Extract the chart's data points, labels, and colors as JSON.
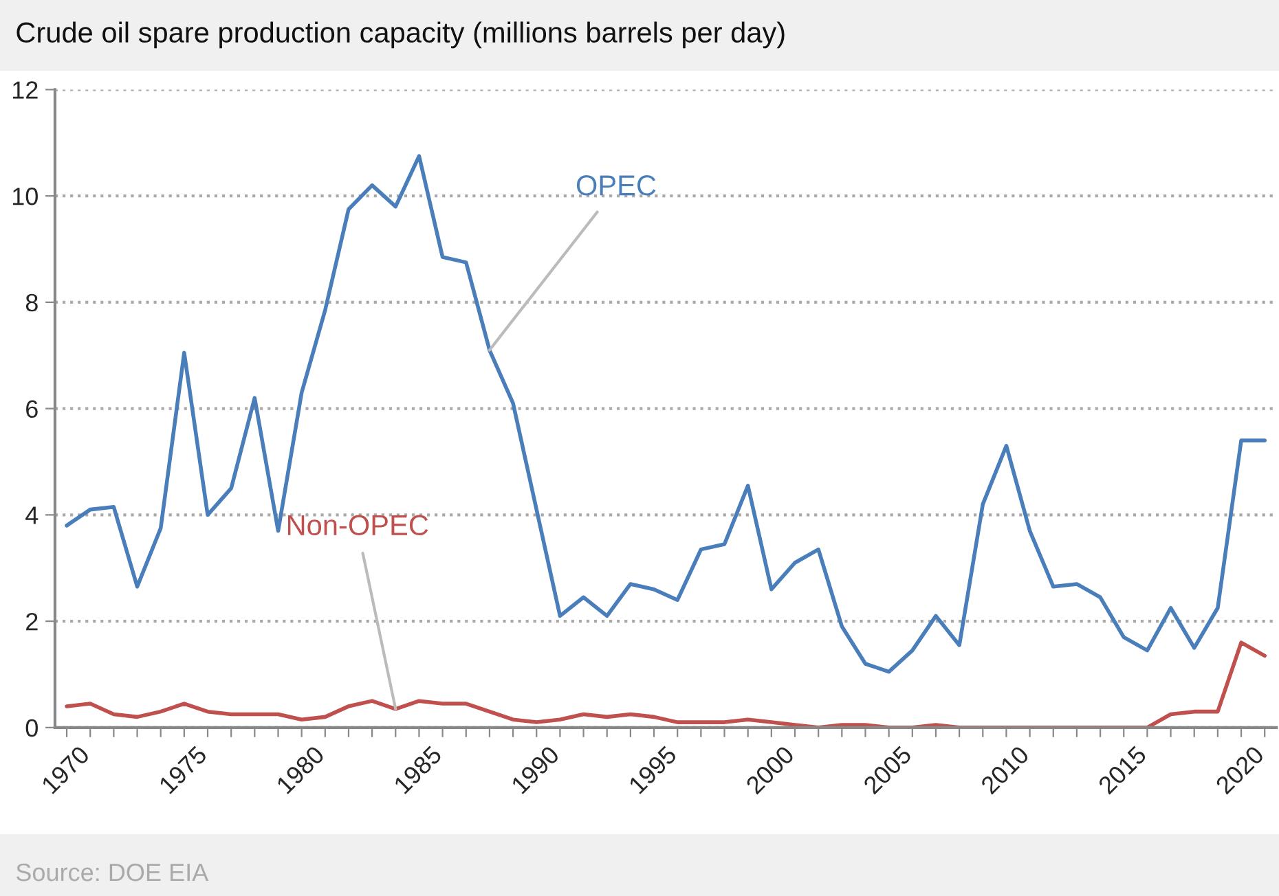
{
  "chart_data": {
    "type": "line",
    "title": "Crude oil spare production capacity (millions barrels per day)",
    "x": [
      1970,
      1971,
      1972,
      1973,
      1974,
      1975,
      1976,
      1977,
      1978,
      1979,
      1980,
      1981,
      1982,
      1983,
      1984,
      1985,
      1986,
      1987,
      1988,
      1989,
      1990,
      1991,
      1992,
      1993,
      1994,
      1995,
      1996,
      1997,
      1998,
      1999,
      2000,
      2001,
      2002,
      2003,
      2004,
      2005,
      2006,
      2007,
      2008,
      2009,
      2010,
      2011,
      2012,
      2013,
      2014,
      2015,
      2016,
      2017,
      2018,
      2019,
      2020,
      2021
    ],
    "series": [
      {
        "name": "OPEC",
        "color": "#4a7ebb",
        "values": [
          3.8,
          4.1,
          4.15,
          2.65,
          3.75,
          7.05,
          4.0,
          4.5,
          6.2,
          3.7,
          6.3,
          7.85,
          9.75,
          10.2,
          9.8,
          10.75,
          8.85,
          8.75,
          7.1,
          6.1,
          4.1,
          2.1,
          2.45,
          2.1,
          2.7,
          2.6,
          2.4,
          3.35,
          3.45,
          4.55,
          2.6,
          3.1,
          3.35,
          1.9,
          1.2,
          1.05,
          1.45,
          2.1,
          1.55,
          4.2,
          5.3,
          3.7,
          2.65,
          2.7,
          2.45,
          1.7,
          1.45,
          2.25,
          1.5,
          2.25,
          5.4,
          5.4
        ]
      },
      {
        "name": "Non-OPEC",
        "color": "#c0504d",
        "values": [
          0.4,
          0.45,
          0.25,
          0.2,
          0.3,
          0.45,
          0.3,
          0.25,
          0.25,
          0.25,
          0.15,
          0.2,
          0.4,
          0.5,
          0.35,
          0.5,
          0.45,
          0.45,
          0.3,
          0.15,
          0.1,
          0.15,
          0.25,
          0.2,
          0.25,
          0.2,
          0.1,
          0.1,
          0.1,
          0.15,
          0.1,
          0.05,
          0.0,
          0.05,
          0.05,
          0.0,
          0.0,
          0.05,
          0.0,
          0.0,
          0.0,
          0.0,
          0.0,
          0.0,
          0.0,
          0.0,
          0.0,
          0.25,
          0.3,
          0.3,
          1.6,
          1.35
        ]
      }
    ],
    "xlim": [
      1969.5,
      2021.5
    ],
    "xticks": [
      1970,
      {
        "value": 1971,
        "label": null
      },
      {
        "value": 1972,
        "label": null
      },
      {
        "value": 1973,
        "label": null
      },
      {
        "value": 1974,
        "label": null
      },
      1975,
      {
        "value": 1976,
        "label": null
      },
      {
        "value": 1977,
        "label": null
      },
      {
        "value": 1978,
        "label": null
      },
      {
        "value": 1979,
        "label": null
      },
      1980,
      {
        "value": 1981,
        "label": null
      },
      {
        "value": 1982,
        "label": null
      },
      {
        "value": 1983,
        "label": null
      },
      {
        "value": 1984,
        "label": null
      },
      1985,
      {
        "value": 1986,
        "label": null
      },
      {
        "value": 1987,
        "label": null
      },
      {
        "value": 1988,
        "label": null
      },
      {
        "value": 1989,
        "label": null
      },
      1990,
      {
        "value": 1991,
        "label": null
      },
      {
        "value": 1992,
        "label": null
      },
      {
        "value": 1993,
        "label": null
      },
      {
        "value": 1994,
        "label": null
      },
      1995,
      {
        "value": 1996,
        "label": null
      },
      {
        "value": 1997,
        "label": null
      },
      {
        "value": 1998,
        "label": null
      },
      {
        "value": 1999,
        "label": null
      },
      2000,
      {
        "value": 2001,
        "label": null
      },
      {
        "value": 2002,
        "label": null
      },
      {
        "value": 2003,
        "label": null
      },
      {
        "value": 2004,
        "label": null
      },
      2005,
      {
        "value": 2006,
        "label": null
      },
      {
        "value": 2007,
        "label": null
      },
      {
        "value": 2008,
        "label": null
      },
      {
        "value": 2009,
        "label": null
      },
      2010,
      {
        "value": 2011,
        "label": null
      },
      {
        "value": 2012,
        "label": null
      },
      {
        "value": 2013,
        "label": null
      },
      {
        "value": 2014,
        "label": null
      },
      2015,
      {
        "value": 2016,
        "label": null
      },
      {
        "value": 2017,
        "label": null
      },
      {
        "value": 2018,
        "label": null
      },
      {
        "value": 2019,
        "label": null
      },
      2020,
      {
        "value": 2021,
        "label": null
      }
    ],
    "ylim": [
      0,
      12
    ],
    "yticks": [
      0,
      2,
      4,
      6,
      8,
      10,
      12
    ],
    "grid": "y",
    "legend": false,
    "marker": "none",
    "line_style": "solid",
    "annotations": [
      "Source: DOE EIA"
    ]
  }
}
